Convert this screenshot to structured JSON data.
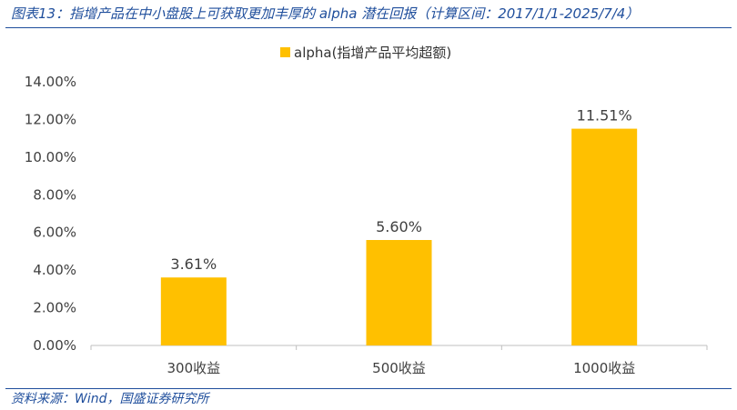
{
  "header": {
    "title": "图表13：指增产品在中小盘股上可获取更加丰厚的 alpha 潜在回报（计算区间：2017/1/1-2025/7/4）"
  },
  "footer": {
    "source": "资料来源：Wind，国盛证券研究所"
  },
  "colors": {
    "bar": "#FFC000",
    "axis": "#BFBFBF",
    "text": "#404040",
    "accent": "#1F4E9C"
  },
  "chart_data": {
    "type": "bar",
    "categories": [
      "300收益",
      "500收益",
      "1000收益"
    ],
    "series": [
      {
        "name": "alpha(指增产品平均超额)",
        "values": [
          3.61,
          5.6,
          11.51
        ],
        "labels": [
          "3.61%",
          "5.60%",
          "11.51%"
        ]
      }
    ],
    "ylim": [
      0,
      14
    ],
    "yticks": [
      0,
      2,
      4,
      6,
      8,
      10,
      12,
      14
    ],
    "ytick_labels": [
      "0.00%",
      "2.00%",
      "4.00%",
      "6.00%",
      "8.00%",
      "10.00%",
      "12.00%",
      "14.00%"
    ],
    "grid": false,
    "legend_position": "top-center",
    "xlabel": "",
    "ylabel": ""
  }
}
